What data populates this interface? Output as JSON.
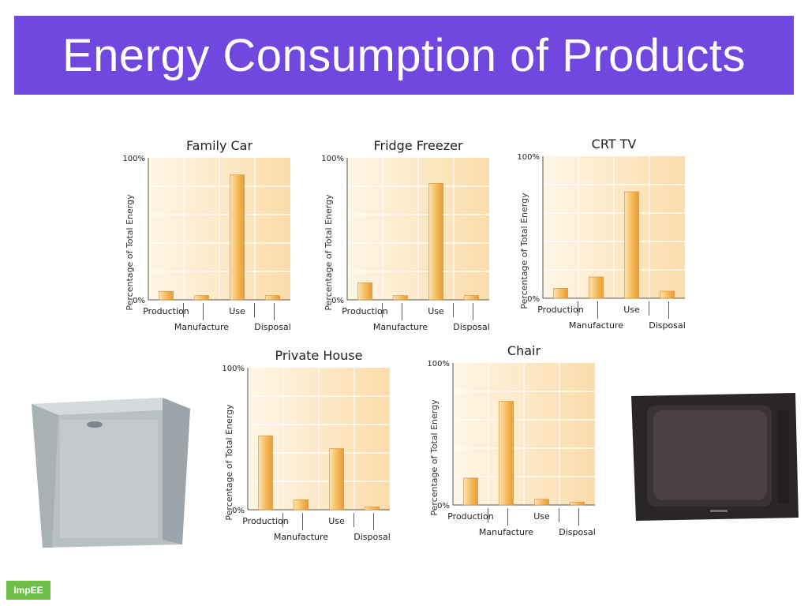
{
  "slide": {
    "title": "Energy Consumption of Products"
  },
  "logo": {
    "text": "ImpEE"
  },
  "chart_data": [
    {
      "type": "bar",
      "title": "Family Car",
      "ylabel": "Percentage of Total Energy",
      "yticks": [
        "100%",
        "0%"
      ],
      "ylim": [
        0,
        100
      ],
      "categories": [
        "Production",
        "Manufacture",
        "Use",
        "Disposal"
      ],
      "values": [
        6,
        3,
        88,
        3
      ],
      "bar_color": "#f5b95a"
    },
    {
      "type": "bar",
      "title": "Fridge Freezer",
      "ylabel": "Percentage of Total Energy",
      "yticks": [
        "100%",
        "0%"
      ],
      "ylim": [
        0,
        100
      ],
      "categories": [
        "Production",
        "Manufacture",
        "Use",
        "Disposal"
      ],
      "values": [
        12,
        3,
        82,
        3
      ],
      "bar_color": "#f5b95a"
    },
    {
      "type": "bar",
      "title": "CRT TV",
      "ylabel": "Percentage of Total Energy",
      "yticks": [
        "100%",
        "0%"
      ],
      "ylim": [
        0,
        100
      ],
      "categories": [
        "Production",
        "Manufacture",
        "Use",
        "Disposal"
      ],
      "values": [
        7,
        15,
        75,
        5
      ],
      "bar_color": "#f5b95a"
    },
    {
      "type": "bar",
      "title": "Private House",
      "ylabel": "Percentage of Total Energy",
      "yticks": [
        "100%",
        "0%"
      ],
      "ylim": [
        0,
        100
      ],
      "categories": [
        "Production",
        "Manufacture",
        "Use",
        "Disposal"
      ],
      "values": [
        52,
        7,
        43,
        2
      ],
      "bar_color": "#f5b95a"
    },
    {
      "type": "bar",
      "title": "Chair",
      "ylabel": "Percentage of Total Energy",
      "yticks": [
        "100%",
        "0%"
      ],
      "ylim": [
        0,
        100
      ],
      "categories": [
        "Production",
        "Manufacture",
        "Use",
        "Disposal"
      ],
      "values": [
        19,
        73,
        4,
        2
      ],
      "bar_color": "#f5b95a"
    }
  ]
}
